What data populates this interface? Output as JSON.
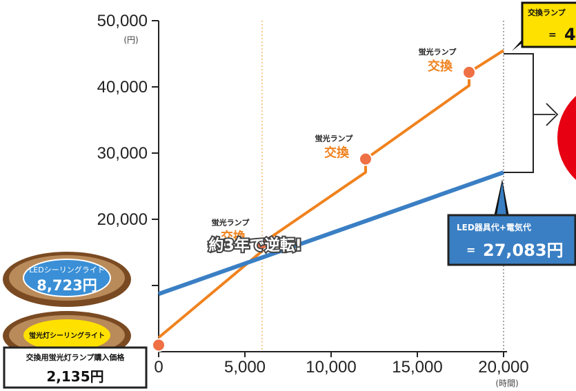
{
  "chart_data": {
    "type": "line",
    "x_ticks": [
      "0",
      "5,000",
      "10,000",
      "15,000",
      "20,000"
    ],
    "x_unit": "(時間)",
    "y_ticks": [
      "20,000",
      "30,000",
      "40,000",
      "50,000"
    ],
    "y_unit": "(円)",
    "xlim": [
      0,
      20000
    ],
    "ylim": [
      0,
      50000
    ],
    "series": [
      {
        "color": "#f0821e",
        "points": [
          [
            0,
            2135
          ],
          [
            6000,
            15200
          ],
          [
            6000,
            16400
          ],
          [
            12000,
            27100
          ],
          [
            12000,
            29100
          ],
          [
            18000,
            40200
          ],
          [
            18000,
            42200
          ],
          [
            20000,
            45500
          ]
        ]
      },
      {
        "color": "#3a7fc4",
        "points": [
          [
            0,
            8723
          ],
          [
            20000,
            27083
          ]
        ]
      }
    ],
    "markers": [
      {
        "x": 0,
        "y": 1000
      },
      {
        "x": 6000,
        "y": 16400
      },
      {
        "x": 12000,
        "y": 29100
      },
      {
        "x": 18000,
        "y": 42200
      }
    ],
    "annotations": [
      {
        "x": 6000,
        "y": 16400,
        "small": "蛍光ランプ",
        "big": "交換"
      },
      {
        "x": 12000,
        "y": 29100,
        "small": "蛍光ランプ",
        "big": "交換"
      },
      {
        "x": 18000,
        "y": 42200,
        "small": "蛍光ランプ",
        "big": "交換"
      }
    ],
    "crossover_x": 6000,
    "crossover_label": "約3年で逆転!",
    "grid": false
  },
  "callouts": {
    "led_cost_label": "LED器具代+電気代",
    "led_cost_eq": "=",
    "led_cost_value": "27,083円",
    "fluor_cost_label": "交換ランプ",
    "fluor_cost_eq": "=",
    "fluor_cost_value": "4",
    "led_product": "LEDシーリングライト",
    "led_price": "8,723円",
    "fluor_product": "蛍光灯シーリングライト",
    "lamp_purchase_label": "交換用蛍光灯ランプ購入価格",
    "lamp_purchase_price": "2,135円"
  },
  "colors": {
    "orange": "#f0821e",
    "blue": "#3a7fc4",
    "red_circle": "#e60012",
    "dome_brown": "#7a4a22",
    "dome_fill": "#b98a5a",
    "yellow": "#ffe100"
  }
}
